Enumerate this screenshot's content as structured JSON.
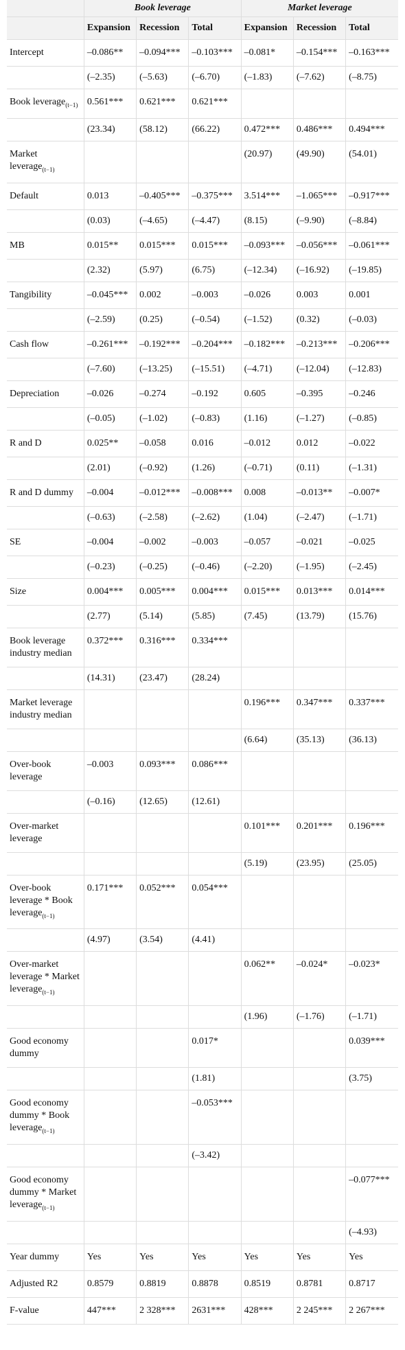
{
  "table": {
    "groups": [
      "Book leverage",
      "Market leverage"
    ],
    "subheaders": [
      "Expansion",
      "Recession",
      "Total",
      "Expansion",
      "Recession",
      "Total"
    ],
    "rows": [
      {
        "label": "Intercept",
        "cells": [
          "–0.086**",
          "–0.094***",
          "–0.103***",
          "–0.081*",
          "–0.154***",
          "–0.163***"
        ]
      },
      {
        "label": null,
        "cells": [
          "(–2.35)",
          "(–5.63)",
          "(–6.70)",
          "(–1.83)",
          "(–7.62)",
          "(–8.75)"
        ]
      },
      {
        "label": "Book leverage",
        "sub": "(t−1)",
        "cells": [
          "0.561***",
          "0.621***",
          "0.621***",
          null,
          null,
          null
        ]
      },
      {
        "label": null,
        "cells": [
          "(23.34)",
          "(58.12)",
          "(66.22)",
          "0.472***",
          "0.486***",
          "0.494***"
        ]
      },
      {
        "label": "Market leverage",
        "sub": "(t−1)",
        "cells": [
          null,
          null,
          null,
          "(20.97)",
          "(49.90)",
          "(54.01)"
        ]
      },
      {
        "label": "Default",
        "cells": [
          "0.013",
          "–0.405***",
          "–0.375***",
          "3.514***",
          "–1.065***",
          "–0.917***"
        ]
      },
      {
        "label": null,
        "cells": [
          "(0.03)",
          "(–4.65)",
          "(–4.47)",
          "(8.15)",
          "(–9.90)",
          "(–8.84)"
        ]
      },
      {
        "label": "MB",
        "cells": [
          "0.015**",
          "0.015***",
          "0.015***",
          "–0.093***",
          "–0.056***",
          "–0.061***"
        ]
      },
      {
        "label": null,
        "cells": [
          "(2.32)",
          "(5.97)",
          "(6.75)",
          "(–12.34)",
          "(–16.92)",
          "(–19.85)"
        ]
      },
      {
        "label": "Tangibility",
        "cells": [
          "–0.045***",
          "0.002",
          "–0.003",
          "–0.026",
          "0.003",
          "0.001"
        ]
      },
      {
        "label": null,
        "cells": [
          "(–2.59)",
          "(0.25)",
          "(–0.54)",
          "(–1.52)",
          "(0.32)",
          "(–0.03)"
        ]
      },
      {
        "label": "Cash flow",
        "cells": [
          "–0.261***",
          "–0.192***",
          "–0.204***",
          "–0.182***",
          "–0.213***",
          "–0.206***"
        ]
      },
      {
        "label": null,
        "cells": [
          "(–7.60)",
          "(–13.25)",
          "(–15.51)",
          "(–4.71)",
          "(–12.04)",
          "(–12.83)"
        ]
      },
      {
        "label": "Depreciation",
        "cells": [
          "–0.026",
          "–0.274",
          "–0.192",
          "0.605",
          "–0.395",
          "–0.246"
        ]
      },
      {
        "label": null,
        "cells": [
          "(–0.05)",
          "(–1.02)",
          "(–0.83)",
          "(1.16)",
          "(–1.27)",
          "(–0.85)"
        ]
      },
      {
        "label": "R and D",
        "cells": [
          "0.025**",
          "–0.058",
          "0.016",
          "–0.012",
          "0.012",
          "–0.022"
        ]
      },
      {
        "label": null,
        "cells": [
          "(2.01)",
          "(–0.92)",
          "(1.26)",
          "(–0.71)",
          "(0.11)",
          "(–1.31)"
        ]
      },
      {
        "label": "R and D dummy",
        "cells": [
          "–0.004",
          "–0.012***",
          "–0.008***",
          "0.008",
          "–0.013**",
          "–0.007*"
        ]
      },
      {
        "label": null,
        "cells": [
          "(–0.63)",
          "(–2.58)",
          "(–2.62)",
          "(1.04)",
          "(–2.47)",
          "(–1.71)"
        ]
      },
      {
        "label": "SE",
        "cells": [
          "–0.004",
          "–0.002",
          "–0.003",
          "–0.057",
          "–0.021",
          "–0.025"
        ]
      },
      {
        "label": null,
        "cells": [
          "(–0.23)",
          "(–0.25)",
          "(–0.46)",
          "(–2.20)",
          "(–1.95)",
          "(–2.45)"
        ]
      },
      {
        "label": "Size",
        "cells": [
          "0.004***",
          "0.005***",
          "0.004***",
          "0.015***",
          "0.013***",
          "0.014***"
        ]
      },
      {
        "label": null,
        "cells": [
          "(2.77)",
          "(5.14)",
          "(5.85)",
          "(7.45)",
          "(13.79)",
          "(15.76)"
        ]
      },
      {
        "label": "Book leverage industry median",
        "cells": [
          "0.372***",
          "0.316***",
          "0.334***",
          null,
          null,
          null
        ]
      },
      {
        "label": null,
        "cells": [
          "(14.31)",
          "(23.47)",
          "(28.24)",
          null,
          null,
          null
        ]
      },
      {
        "label": "Market leverage industry median",
        "cells": [
          null,
          null,
          null,
          "0.196***",
          "0.347***",
          "0.337***"
        ]
      },
      {
        "label": null,
        "cells": [
          null,
          null,
          null,
          "(6.64)",
          "(35.13)",
          "(36.13)"
        ]
      },
      {
        "label": "Over-book leverage",
        "cells": [
          "–0.003",
          "0.093***",
          "0.086***",
          null,
          null,
          null
        ]
      },
      {
        "label": null,
        "cells": [
          "(–0.16)",
          "(12.65)",
          "(12.61)",
          null,
          null,
          null
        ]
      },
      {
        "label": "Over-market leverage",
        "cells": [
          null,
          null,
          null,
          "0.101***",
          "0.201***",
          "0.196***"
        ]
      },
      {
        "label": null,
        "cells": [
          null,
          null,
          null,
          "(5.19)",
          "(23.95)",
          "(25.05)"
        ]
      },
      {
        "label": "Over-book leverage * Book leverage",
        "sub": "(t−1)",
        "cells": [
          "0.171***",
          "0.052***",
          "0.054***",
          null,
          null,
          null
        ]
      },
      {
        "label": null,
        "cells": [
          "(4.97)",
          "(3.54)",
          "(4.41)",
          null,
          null,
          null
        ]
      },
      {
        "label": "Over-market leverage * Market leverage",
        "sub": "(t−1)",
        "cells": [
          null,
          null,
          null,
          "0.062**",
          "–0.024*",
          "–0.023*"
        ]
      },
      {
        "label": null,
        "cells": [
          null,
          null,
          null,
          "(1.96)",
          "(–1.76)",
          "(–1.71)"
        ]
      },
      {
        "label": "Good economy dummy",
        "cells": [
          null,
          null,
          "0.017*",
          null,
          null,
          "0.039***"
        ]
      },
      {
        "label": null,
        "cells": [
          null,
          null,
          "(1.81)",
          null,
          null,
          "(3.75)"
        ]
      },
      {
        "label": "Good economy dummy * Book leverage",
        "sub": "(t−1)",
        "cells": [
          null,
          null,
          "–0.053***",
          null,
          null,
          null
        ]
      },
      {
        "label": null,
        "cells": [
          null,
          null,
          "(–3.42)",
          null,
          null,
          null
        ]
      },
      {
        "label": "Good economy dummy * Market leverage",
        "sub": "(t−1)",
        "cells": [
          null,
          null,
          null,
          null,
          null,
          "–0.077***"
        ]
      },
      {
        "label": null,
        "cells": [
          null,
          null,
          null,
          null,
          null,
          "(–4.93)"
        ]
      },
      {
        "label": "Year dummy",
        "cells": [
          "Yes",
          "Yes",
          "Yes",
          "Yes",
          "Yes",
          "Yes"
        ]
      },
      {
        "label": "Adjusted R2",
        "cells": [
          "0.8579",
          "0.8819",
          "0.8878",
          "0.8519",
          "0.8781",
          "0.8717"
        ]
      },
      {
        "label": "F-value",
        "cells": [
          "447***",
          "2 328***",
          "2631***",
          "428***",
          "2 245***",
          "2 267***"
        ]
      }
    ]
  }
}
